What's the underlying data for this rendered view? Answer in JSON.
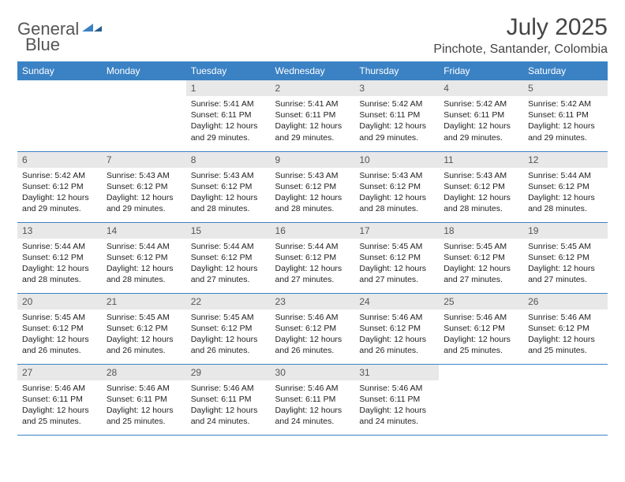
{
  "logo": {
    "text_general": "General",
    "text_blue": "Blue"
  },
  "header": {
    "month_title": "July 2025",
    "location": "Pinchote, Santander, Colombia"
  },
  "colors": {
    "header_bg": "#3b82c4",
    "header_fg": "#ffffff",
    "daynum_bg": "#e8e8e8",
    "row_border": "#3b82c4",
    "logo_blue": "#3b82c4",
    "text_body": "#222222",
    "page_bg": "#ffffff"
  },
  "weekdays": [
    "Sunday",
    "Monday",
    "Tuesday",
    "Wednesday",
    "Thursday",
    "Friday",
    "Saturday"
  ],
  "weeks": [
    [
      null,
      null,
      {
        "num": "1",
        "sunrise": "Sunrise: 5:41 AM",
        "sunset": "Sunset: 6:11 PM",
        "day1": "Daylight: 12 hours",
        "day2": "and 29 minutes."
      },
      {
        "num": "2",
        "sunrise": "Sunrise: 5:41 AM",
        "sunset": "Sunset: 6:11 PM",
        "day1": "Daylight: 12 hours",
        "day2": "and 29 minutes."
      },
      {
        "num": "3",
        "sunrise": "Sunrise: 5:42 AM",
        "sunset": "Sunset: 6:11 PM",
        "day1": "Daylight: 12 hours",
        "day2": "and 29 minutes."
      },
      {
        "num": "4",
        "sunrise": "Sunrise: 5:42 AM",
        "sunset": "Sunset: 6:11 PM",
        "day1": "Daylight: 12 hours",
        "day2": "and 29 minutes."
      },
      {
        "num": "5",
        "sunrise": "Sunrise: 5:42 AM",
        "sunset": "Sunset: 6:11 PM",
        "day1": "Daylight: 12 hours",
        "day2": "and 29 minutes."
      }
    ],
    [
      {
        "num": "6",
        "sunrise": "Sunrise: 5:42 AM",
        "sunset": "Sunset: 6:12 PM",
        "day1": "Daylight: 12 hours",
        "day2": "and 29 minutes."
      },
      {
        "num": "7",
        "sunrise": "Sunrise: 5:43 AM",
        "sunset": "Sunset: 6:12 PM",
        "day1": "Daylight: 12 hours",
        "day2": "and 29 minutes."
      },
      {
        "num": "8",
        "sunrise": "Sunrise: 5:43 AM",
        "sunset": "Sunset: 6:12 PM",
        "day1": "Daylight: 12 hours",
        "day2": "and 28 minutes."
      },
      {
        "num": "9",
        "sunrise": "Sunrise: 5:43 AM",
        "sunset": "Sunset: 6:12 PM",
        "day1": "Daylight: 12 hours",
        "day2": "and 28 minutes."
      },
      {
        "num": "10",
        "sunrise": "Sunrise: 5:43 AM",
        "sunset": "Sunset: 6:12 PM",
        "day1": "Daylight: 12 hours",
        "day2": "and 28 minutes."
      },
      {
        "num": "11",
        "sunrise": "Sunrise: 5:43 AM",
        "sunset": "Sunset: 6:12 PM",
        "day1": "Daylight: 12 hours",
        "day2": "and 28 minutes."
      },
      {
        "num": "12",
        "sunrise": "Sunrise: 5:44 AM",
        "sunset": "Sunset: 6:12 PM",
        "day1": "Daylight: 12 hours",
        "day2": "and 28 minutes."
      }
    ],
    [
      {
        "num": "13",
        "sunrise": "Sunrise: 5:44 AM",
        "sunset": "Sunset: 6:12 PM",
        "day1": "Daylight: 12 hours",
        "day2": "and 28 minutes."
      },
      {
        "num": "14",
        "sunrise": "Sunrise: 5:44 AM",
        "sunset": "Sunset: 6:12 PM",
        "day1": "Daylight: 12 hours",
        "day2": "and 28 minutes."
      },
      {
        "num": "15",
        "sunrise": "Sunrise: 5:44 AM",
        "sunset": "Sunset: 6:12 PM",
        "day1": "Daylight: 12 hours",
        "day2": "and 27 minutes."
      },
      {
        "num": "16",
        "sunrise": "Sunrise: 5:44 AM",
        "sunset": "Sunset: 6:12 PM",
        "day1": "Daylight: 12 hours",
        "day2": "and 27 minutes."
      },
      {
        "num": "17",
        "sunrise": "Sunrise: 5:45 AM",
        "sunset": "Sunset: 6:12 PM",
        "day1": "Daylight: 12 hours",
        "day2": "and 27 minutes."
      },
      {
        "num": "18",
        "sunrise": "Sunrise: 5:45 AM",
        "sunset": "Sunset: 6:12 PM",
        "day1": "Daylight: 12 hours",
        "day2": "and 27 minutes."
      },
      {
        "num": "19",
        "sunrise": "Sunrise: 5:45 AM",
        "sunset": "Sunset: 6:12 PM",
        "day1": "Daylight: 12 hours",
        "day2": "and 27 minutes."
      }
    ],
    [
      {
        "num": "20",
        "sunrise": "Sunrise: 5:45 AM",
        "sunset": "Sunset: 6:12 PM",
        "day1": "Daylight: 12 hours",
        "day2": "and 26 minutes."
      },
      {
        "num": "21",
        "sunrise": "Sunrise: 5:45 AM",
        "sunset": "Sunset: 6:12 PM",
        "day1": "Daylight: 12 hours",
        "day2": "and 26 minutes."
      },
      {
        "num": "22",
        "sunrise": "Sunrise: 5:45 AM",
        "sunset": "Sunset: 6:12 PM",
        "day1": "Daylight: 12 hours",
        "day2": "and 26 minutes."
      },
      {
        "num": "23",
        "sunrise": "Sunrise: 5:46 AM",
        "sunset": "Sunset: 6:12 PM",
        "day1": "Daylight: 12 hours",
        "day2": "and 26 minutes."
      },
      {
        "num": "24",
        "sunrise": "Sunrise: 5:46 AM",
        "sunset": "Sunset: 6:12 PM",
        "day1": "Daylight: 12 hours",
        "day2": "and 26 minutes."
      },
      {
        "num": "25",
        "sunrise": "Sunrise: 5:46 AM",
        "sunset": "Sunset: 6:12 PM",
        "day1": "Daylight: 12 hours",
        "day2": "and 25 minutes."
      },
      {
        "num": "26",
        "sunrise": "Sunrise: 5:46 AM",
        "sunset": "Sunset: 6:12 PM",
        "day1": "Daylight: 12 hours",
        "day2": "and 25 minutes."
      }
    ],
    [
      {
        "num": "27",
        "sunrise": "Sunrise: 5:46 AM",
        "sunset": "Sunset: 6:11 PM",
        "day1": "Daylight: 12 hours",
        "day2": "and 25 minutes."
      },
      {
        "num": "28",
        "sunrise": "Sunrise: 5:46 AM",
        "sunset": "Sunset: 6:11 PM",
        "day1": "Daylight: 12 hours",
        "day2": "and 25 minutes."
      },
      {
        "num": "29",
        "sunrise": "Sunrise: 5:46 AM",
        "sunset": "Sunset: 6:11 PM",
        "day1": "Daylight: 12 hours",
        "day2": "and 24 minutes."
      },
      {
        "num": "30",
        "sunrise": "Sunrise: 5:46 AM",
        "sunset": "Sunset: 6:11 PM",
        "day1": "Daylight: 12 hours",
        "day2": "and 24 minutes."
      },
      {
        "num": "31",
        "sunrise": "Sunrise: 5:46 AM",
        "sunset": "Sunset: 6:11 PM",
        "day1": "Daylight: 12 hours",
        "day2": "and 24 minutes."
      },
      null,
      null
    ]
  ]
}
